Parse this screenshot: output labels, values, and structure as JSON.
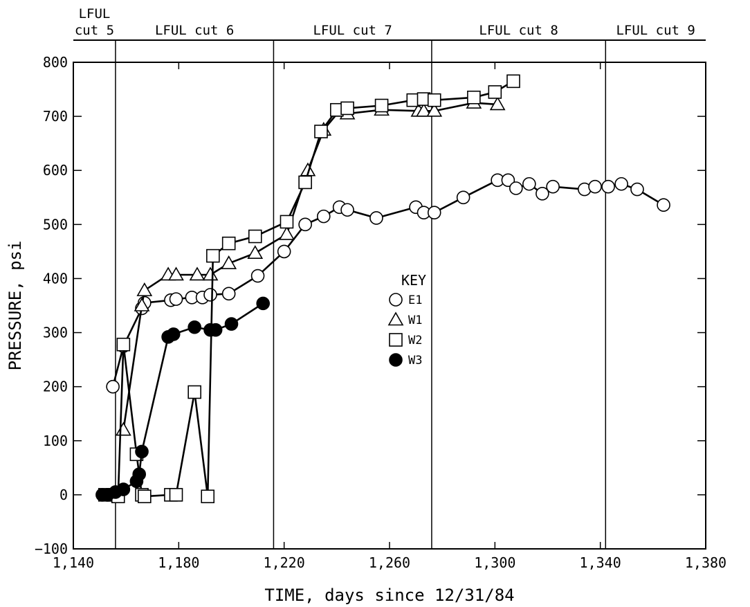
{
  "chart_data": {
    "type": "scatter",
    "xlabel": "TIME, days since 12/31/84",
    "ylabel": "PRESSURE, psi",
    "xlim": [
      1140,
      1380
    ],
    "ylim": [
      -100,
      800
    ],
    "x_ticks": [
      1140,
      1180,
      1220,
      1260,
      1300,
      1340,
      1380
    ],
    "x_tick_labels": [
      "1,140",
      "1,180",
      "1,220",
      "1,260",
      "1,300",
      "1,340",
      "1,380"
    ],
    "y_ticks": [
      -100,
      0,
      100,
      200,
      300,
      400,
      500,
      600,
      700,
      800
    ],
    "y_tick_labels": [
      "−100",
      "0",
      "100",
      "200",
      "300",
      "400",
      "500",
      "600",
      "700",
      "800"
    ],
    "grid": false,
    "cut_boundaries": [
      1156,
      1216,
      1276,
      1342
    ],
    "cut_labels": [
      {
        "lines": [
          "LFUL",
          "cut 5"
        ],
        "x": 1148
      },
      {
        "lines": [
          "LFUL cut 6"
        ],
        "x": 1186
      },
      {
        "lines": [
          "LFUL cut 7"
        ],
        "x": 1246
      },
      {
        "lines": [
          "LFUL cut 8"
        ],
        "x": 1309
      },
      {
        "lines": [
          "LFUL cut 9"
        ],
        "x": 1361
      }
    ],
    "legend": {
      "title": "KEY",
      "position": "center",
      "entries": [
        "E1",
        "W1",
        "W2",
        "W3"
      ]
    },
    "series": [
      {
        "name": "E1",
        "marker": "circle-open",
        "points": [
          [
            1155,
            200
          ],
          [
            1159,
            275
          ],
          [
            1166,
            345
          ],
          [
            1167,
            355
          ],
          [
            1177,
            360
          ],
          [
            1179,
            362
          ],
          [
            1185,
            365
          ],
          [
            1189,
            365
          ],
          [
            1192,
            370
          ],
          [
            1199,
            372
          ],
          [
            1210,
            405
          ],
          [
            1220,
            450
          ],
          [
            1228,
            500
          ],
          [
            1235,
            515
          ],
          [
            1241,
            532
          ],
          [
            1244,
            527
          ],
          [
            1255,
            512
          ],
          [
            1270,
            532
          ],
          [
            1273,
            522
          ],
          [
            1277,
            522
          ],
          [
            1288,
            550
          ],
          [
            1301,
            582
          ],
          [
            1305,
            582
          ],
          [
            1308,
            567
          ],
          [
            1313,
            575
          ],
          [
            1318,
            557
          ],
          [
            1322,
            570
          ],
          [
            1334,
            565
          ],
          [
            1338,
            570
          ],
          [
            1343,
            570
          ],
          [
            1348,
            575
          ],
          [
            1354,
            565
          ],
          [
            1364,
            536
          ]
        ]
      },
      {
        "name": "W1",
        "marker": "triangle-open",
        "points": [
          [
            1159,
            120
          ],
          [
            1166,
            350
          ],
          [
            1167,
            378
          ],
          [
            1176,
            407
          ],
          [
            1179,
            407
          ],
          [
            1187,
            407
          ],
          [
            1192,
            407
          ],
          [
            1199,
            428
          ],
          [
            1209,
            447
          ],
          [
            1221,
            482
          ],
          [
            1229,
            600
          ],
          [
            1235,
            675
          ],
          [
            1241,
            710
          ],
          [
            1244,
            705
          ],
          [
            1257,
            712
          ],
          [
            1271,
            710
          ],
          [
            1273,
            710
          ],
          [
            1277,
            710
          ],
          [
            1292,
            725
          ],
          [
            1301,
            722
          ]
        ]
      },
      {
        "name": "W2",
        "marker": "square-open",
        "points": [
          [
            1152,
            0
          ],
          [
            1155,
            0
          ],
          [
            1157,
            -3
          ],
          [
            1159,
            278
          ],
          [
            1164,
            75
          ],
          [
            1166,
            0
          ],
          [
            1167,
            -3
          ],
          [
            1177,
            0
          ],
          [
            1179,
            0
          ],
          [
            1186,
            190
          ],
          [
            1191,
            -3
          ],
          [
            1193,
            442
          ],
          [
            1199,
            465
          ],
          [
            1209,
            478
          ],
          [
            1221,
            505
          ],
          [
            1228,
            578
          ],
          [
            1234,
            672
          ],
          [
            1240,
            712
          ],
          [
            1244,
            715
          ],
          [
            1257,
            720
          ],
          [
            1269,
            730
          ],
          [
            1273,
            732
          ],
          [
            1277,
            730
          ],
          [
            1292,
            735
          ],
          [
            1300,
            745
          ],
          [
            1307,
            765
          ]
        ]
      },
      {
        "name": "W3",
        "marker": "circle-filled",
        "points": [
          [
            1151,
            0
          ],
          [
            1153,
            0
          ],
          [
            1156,
            5
          ],
          [
            1159,
            10
          ],
          [
            1164,
            25
          ],
          [
            1165,
            38
          ],
          [
            1166,
            80
          ],
          [
            1176,
            292
          ],
          [
            1178,
            297
          ],
          [
            1186,
            310
          ],
          [
            1192,
            305
          ],
          [
            1194,
            305
          ],
          [
            1200,
            316
          ],
          [
            1212,
            354
          ]
        ]
      }
    ]
  }
}
